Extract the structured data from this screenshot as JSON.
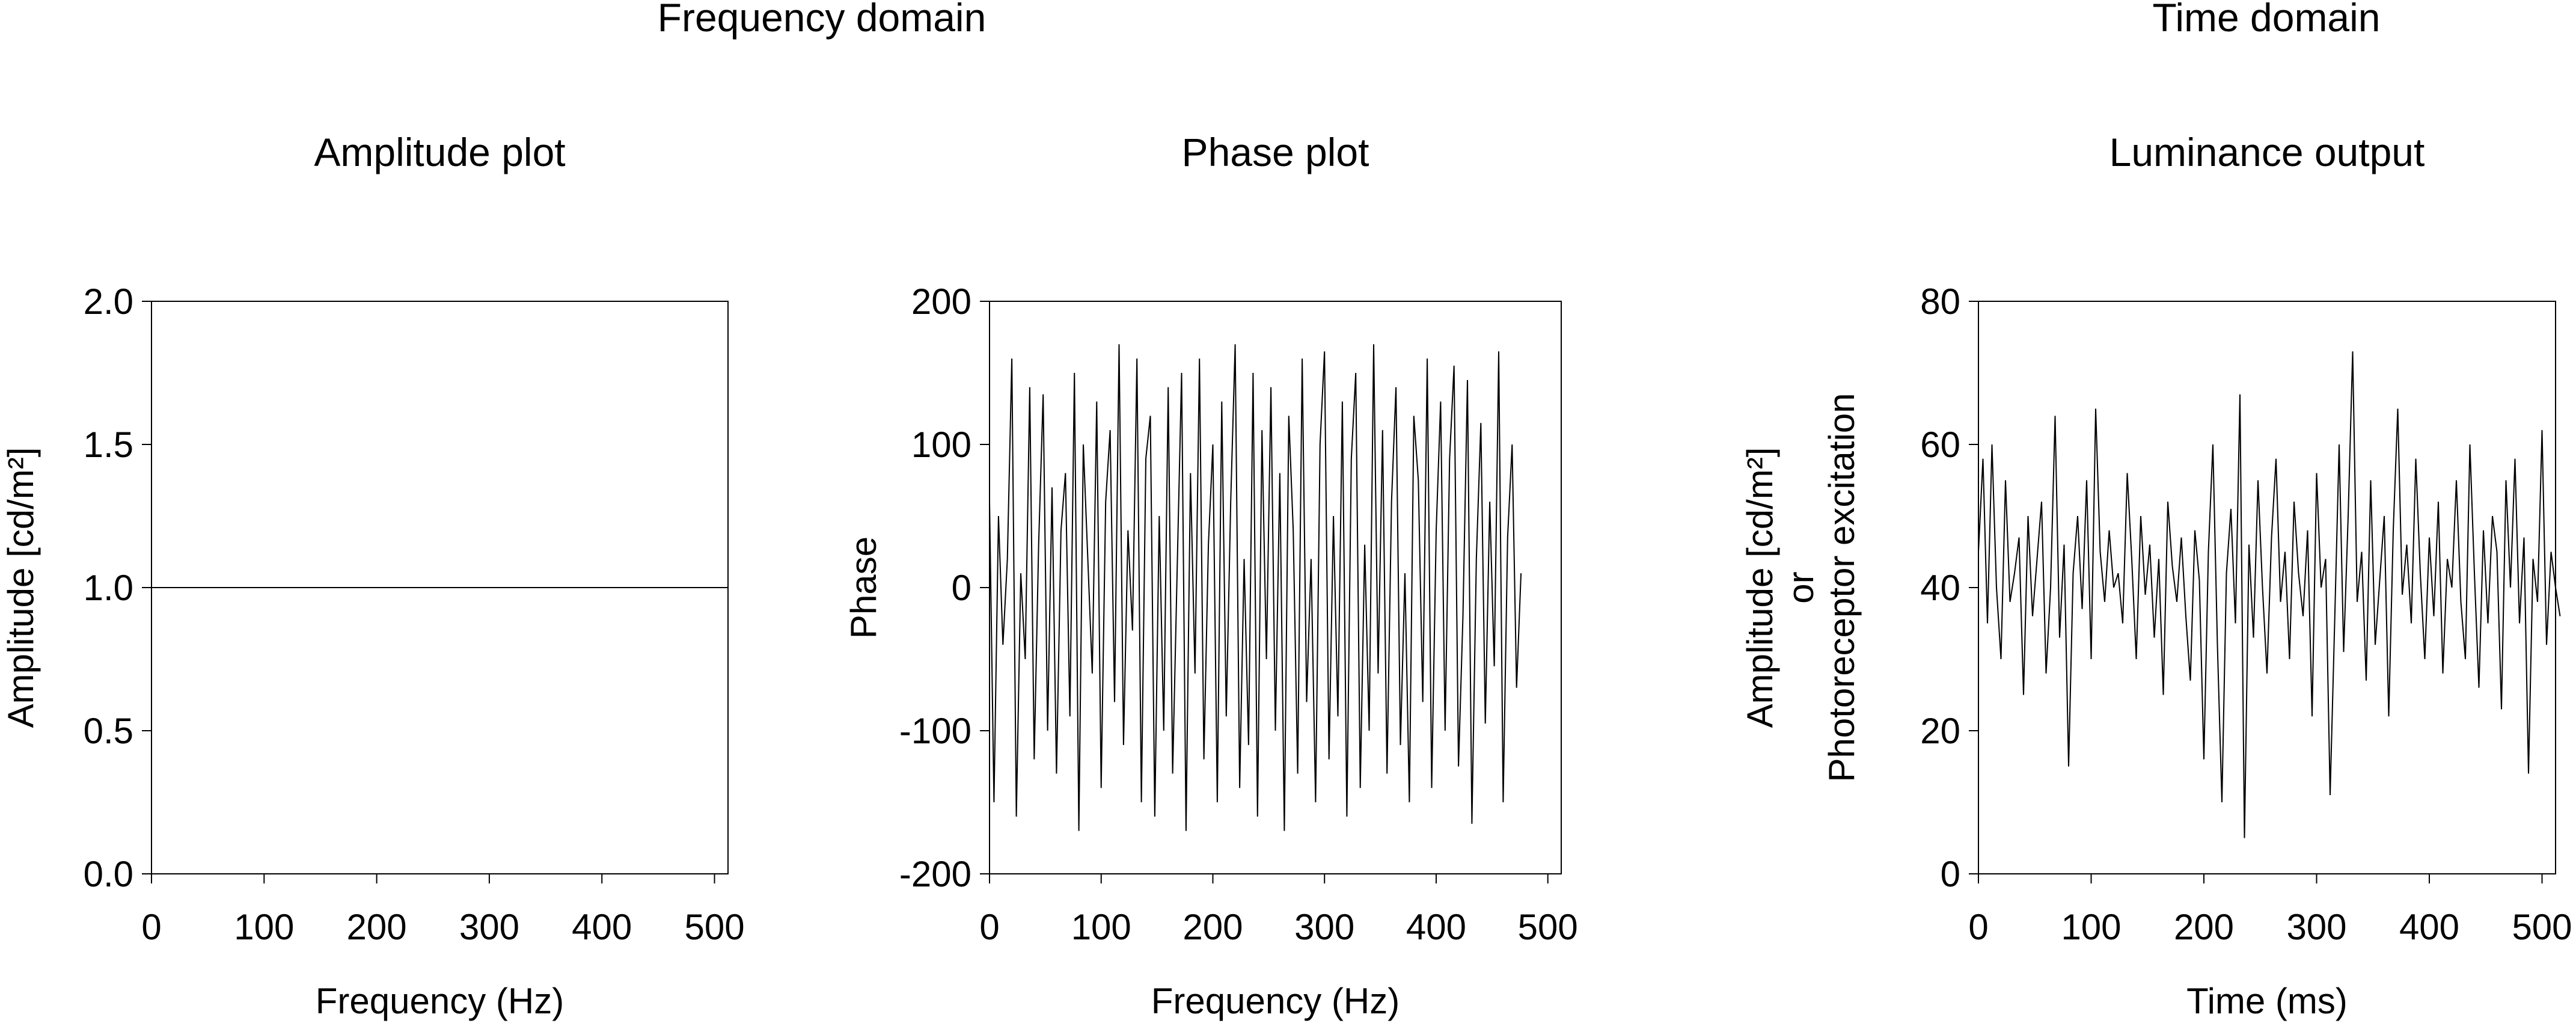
{
  "headers": {
    "frequency_domain": "Frequency domain",
    "time_domain": "Time domain"
  },
  "chart_data": [
    {
      "type": "line",
      "title": "Amplitude plot",
      "xlabel": "Frequency (Hz)",
      "ylabel": "Amplitude [cd/m²]",
      "xlim": [
        0,
        512
      ],
      "ylim": [
        0.0,
        2.0
      ],
      "xticks": [
        "0",
        "100",
        "200",
        "300",
        "400",
        "500"
      ],
      "yticks": [
        "0.0",
        "0.5",
        "1.0",
        "1.5",
        "2.0"
      ],
      "grid": false,
      "series": [
        {
          "x": [
            0,
            512
          ],
          "values": [
            1.0,
            1.0
          ]
        }
      ]
    },
    {
      "type": "line",
      "title": "Phase plot",
      "xlabel": "Frequency (Hz)",
      "ylabel": "Phase",
      "xlim": [
        0,
        512
      ],
      "ylim": [
        -200,
        200
      ],
      "xticks": [
        "0",
        "100",
        "200",
        "300",
        "400",
        "500"
      ],
      "yticks": [
        "-200",
        "-100",
        "0",
        "100",
        "200"
      ],
      "grid": false,
      "series": [
        {
          "x_start": 0,
          "x_step": 4,
          "values": [
            60,
            -150,
            50,
            -40,
            20,
            160,
            -160,
            10,
            -50,
            140,
            -120,
            30,
            135,
            -100,
            70,
            -130,
            40,
            80,
            -90,
            150,
            -170,
            100,
            20,
            -60,
            130,
            -140,
            60,
            110,
            -80,
            170,
            -110,
            40,
            -30,
            160,
            -150,
            90,
            120,
            -160,
            50,
            -100,
            140,
            -130,
            10,
            150,
            -170,
            80,
            -60,
            160,
            -120,
            30,
            100,
            -150,
            130,
            -90,
            60,
            170,
            -140,
            20,
            -110,
            150,
            -160,
            110,
            -50,
            140,
            -100,
            80,
            -170,
            120,
            40,
            -130,
            160,
            -80,
            20,
            -150,
            100,
            165,
            -120,
            50,
            -90,
            130,
            -160,
            90,
            150,
            -140,
            30,
            -100,
            170,
            -60,
            110,
            -130,
            60,
            140,
            -110,
            10,
            -150,
            120,
            75,
            -80,
            160,
            -140,
            40,
            130,
            -100,
            90,
            155,
            -125,
            -20,
            145,
            -165,
            20,
            115,
            -95,
            60,
            -55,
            165,
            -150,
            35,
            100,
            -70,
            10
          ]
        }
      ]
    },
    {
      "type": "line",
      "title": "Luminance output",
      "xlabel": "Time (ms)",
      "ylabel": "Amplitude [cd/m²]",
      "ylabel2": "or",
      "ylabel3": "Photoreceptor excitation",
      "xlim": [
        0,
        512
      ],
      "ylim": [
        0,
        80
      ],
      "xticks": [
        "0",
        "100",
        "200",
        "300",
        "400",
        "500"
      ],
      "yticks": [
        "0",
        "20",
        "40",
        "60",
        "80"
      ],
      "grid": false,
      "series": [
        {
          "x_start": 0,
          "x_step": 4,
          "values": [
            45,
            58,
            35,
            60,
            40,
            30,
            55,
            38,
            42,
            47,
            25,
            50,
            36,
            44,
            52,
            28,
            40,
            64,
            33,
            46,
            15,
            42,
            50,
            37,
            55,
            30,
            65,
            45,
            38,
            48,
            40,
            42,
            35,
            56,
            44,
            30,
            50,
            39,
            46,
            33,
            44,
            25,
            52,
            43,
            38,
            47,
            36,
            27,
            48,
            41,
            16,
            45,
            60,
            32,
            10,
            42,
            51,
            35,
            67,
            5,
            46,
            33,
            55,
            40,
            28,
            47,
            58,
            38,
            45,
            30,
            52,
            42,
            36,
            48,
            22,
            56,
            40,
            44,
            11,
            35,
            60,
            31,
            50,
            73,
            38,
            45,
            27,
            55,
            32,
            41,
            50,
            22,
            48,
            65,
            39,
            46,
            35,
            58,
            42,
            30,
            47,
            36,
            52,
            28,
            44,
            40,
            55,
            38,
            30,
            60,
            42,
            26,
            48,
            35,
            50,
            45,
            23,
            55,
            40,
            58,
            35,
            47,
            14,
            44,
            38,
            62,
            32,
            45,
            40,
            36
          ]
        }
      ]
    }
  ]
}
